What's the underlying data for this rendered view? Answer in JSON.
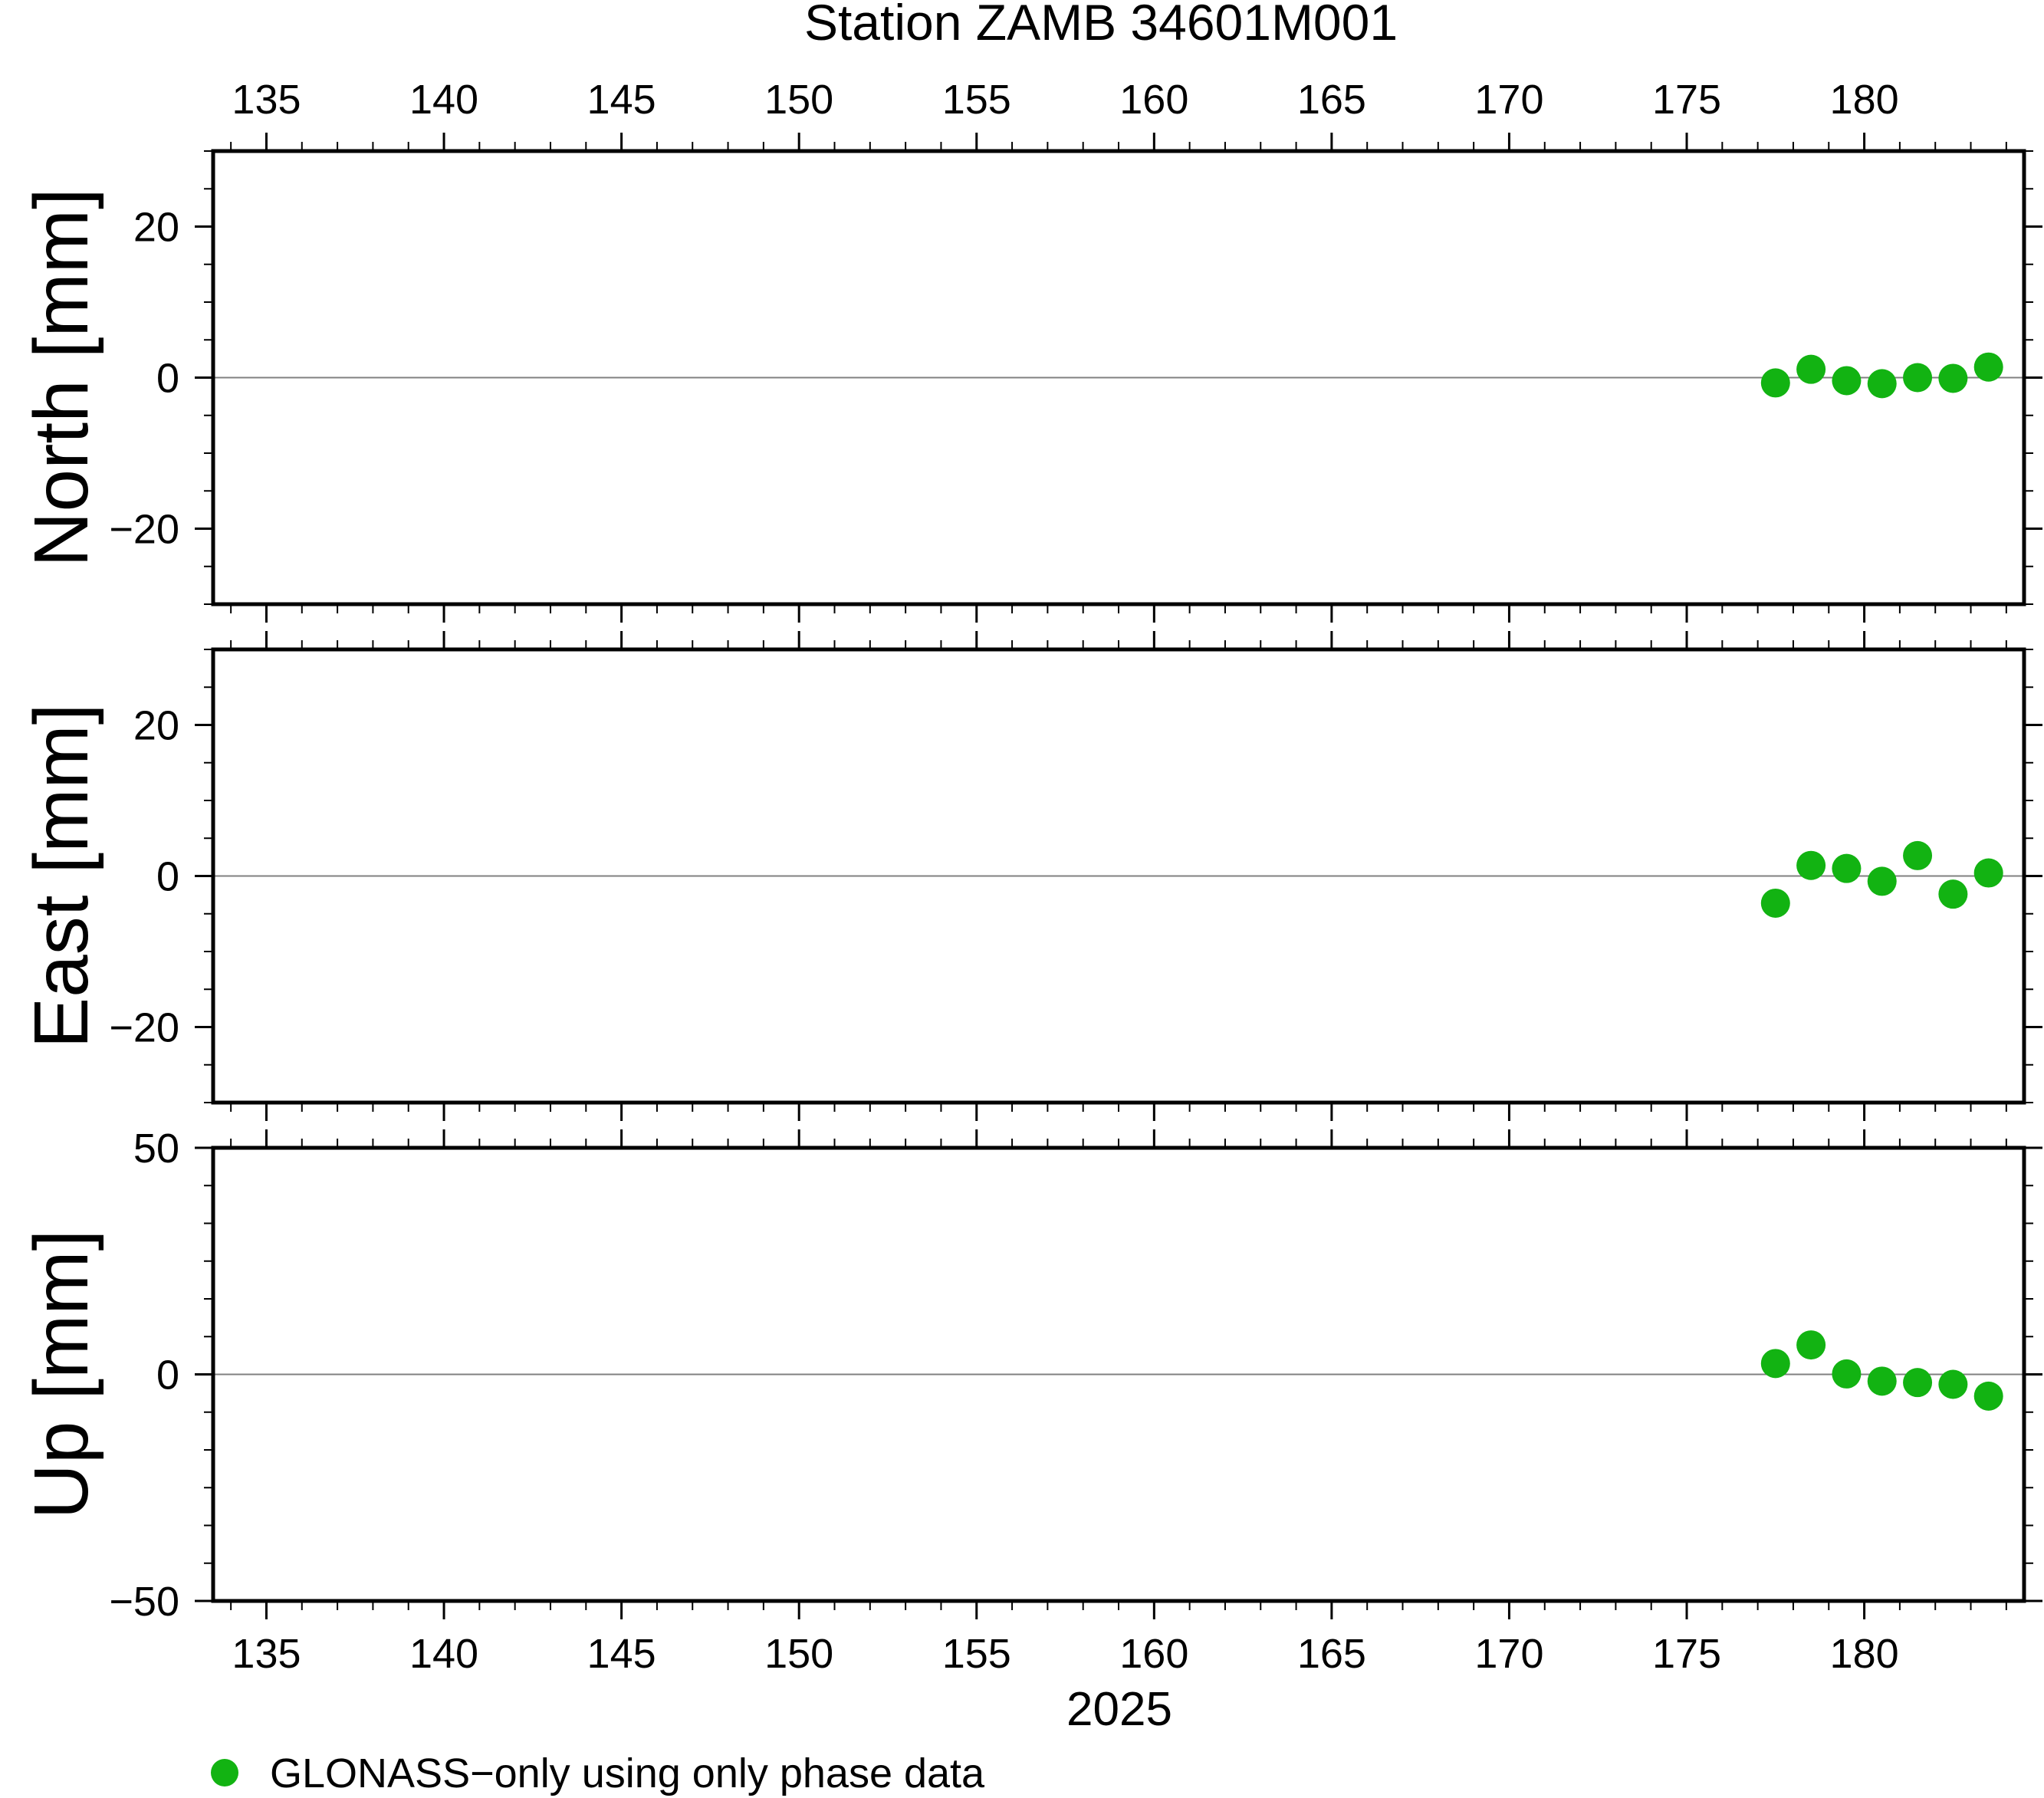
{
  "chart_data": {
    "type": "scatter",
    "title": "Station ZAMB 34601M001",
    "xlabel": "2025",
    "xlim": [
      133.5,
      184.5
    ],
    "xticks": [
      135,
      140,
      145,
      150,
      155,
      160,
      165,
      170,
      175,
      180
    ],
    "x": [
      177.5,
      178.5,
      179.5,
      180.5,
      181.5,
      182.5,
      183.5
    ],
    "panels": [
      {
        "ylabel": "North [mm]",
        "ylim": [
          -30,
          30
        ],
        "yticks": [
          -20,
          0,
          20
        ],
        "values": [
          -0.7,
          1.1,
          -0.4,
          -0.8,
          0.0,
          -0.1,
          1.4
        ]
      },
      {
        "ylabel": "East [mm]",
        "ylim": [
          -30,
          30
        ],
        "yticks": [
          -20,
          0,
          20
        ],
        "values": [
          -3.6,
          1.4,
          1.0,
          -0.7,
          2.7,
          -2.4,
          0.4
        ]
      },
      {
        "ylabel": "Up [mm]",
        "ylim": [
          -50,
          50
        ],
        "yticks": [
          -50,
          0,
          50
        ],
        "values": [
          2.4,
          6.5,
          0.1,
          -1.5,
          -1.8,
          -2.2,
          -4.8
        ]
      }
    ],
    "legend": {
      "label": "GLONASS−only using only phase data",
      "placement": "bottom-left"
    },
    "colors": {
      "series": "#12b312",
      "zero_line": "#808080",
      "axes": "#000000"
    },
    "grid": false
  }
}
